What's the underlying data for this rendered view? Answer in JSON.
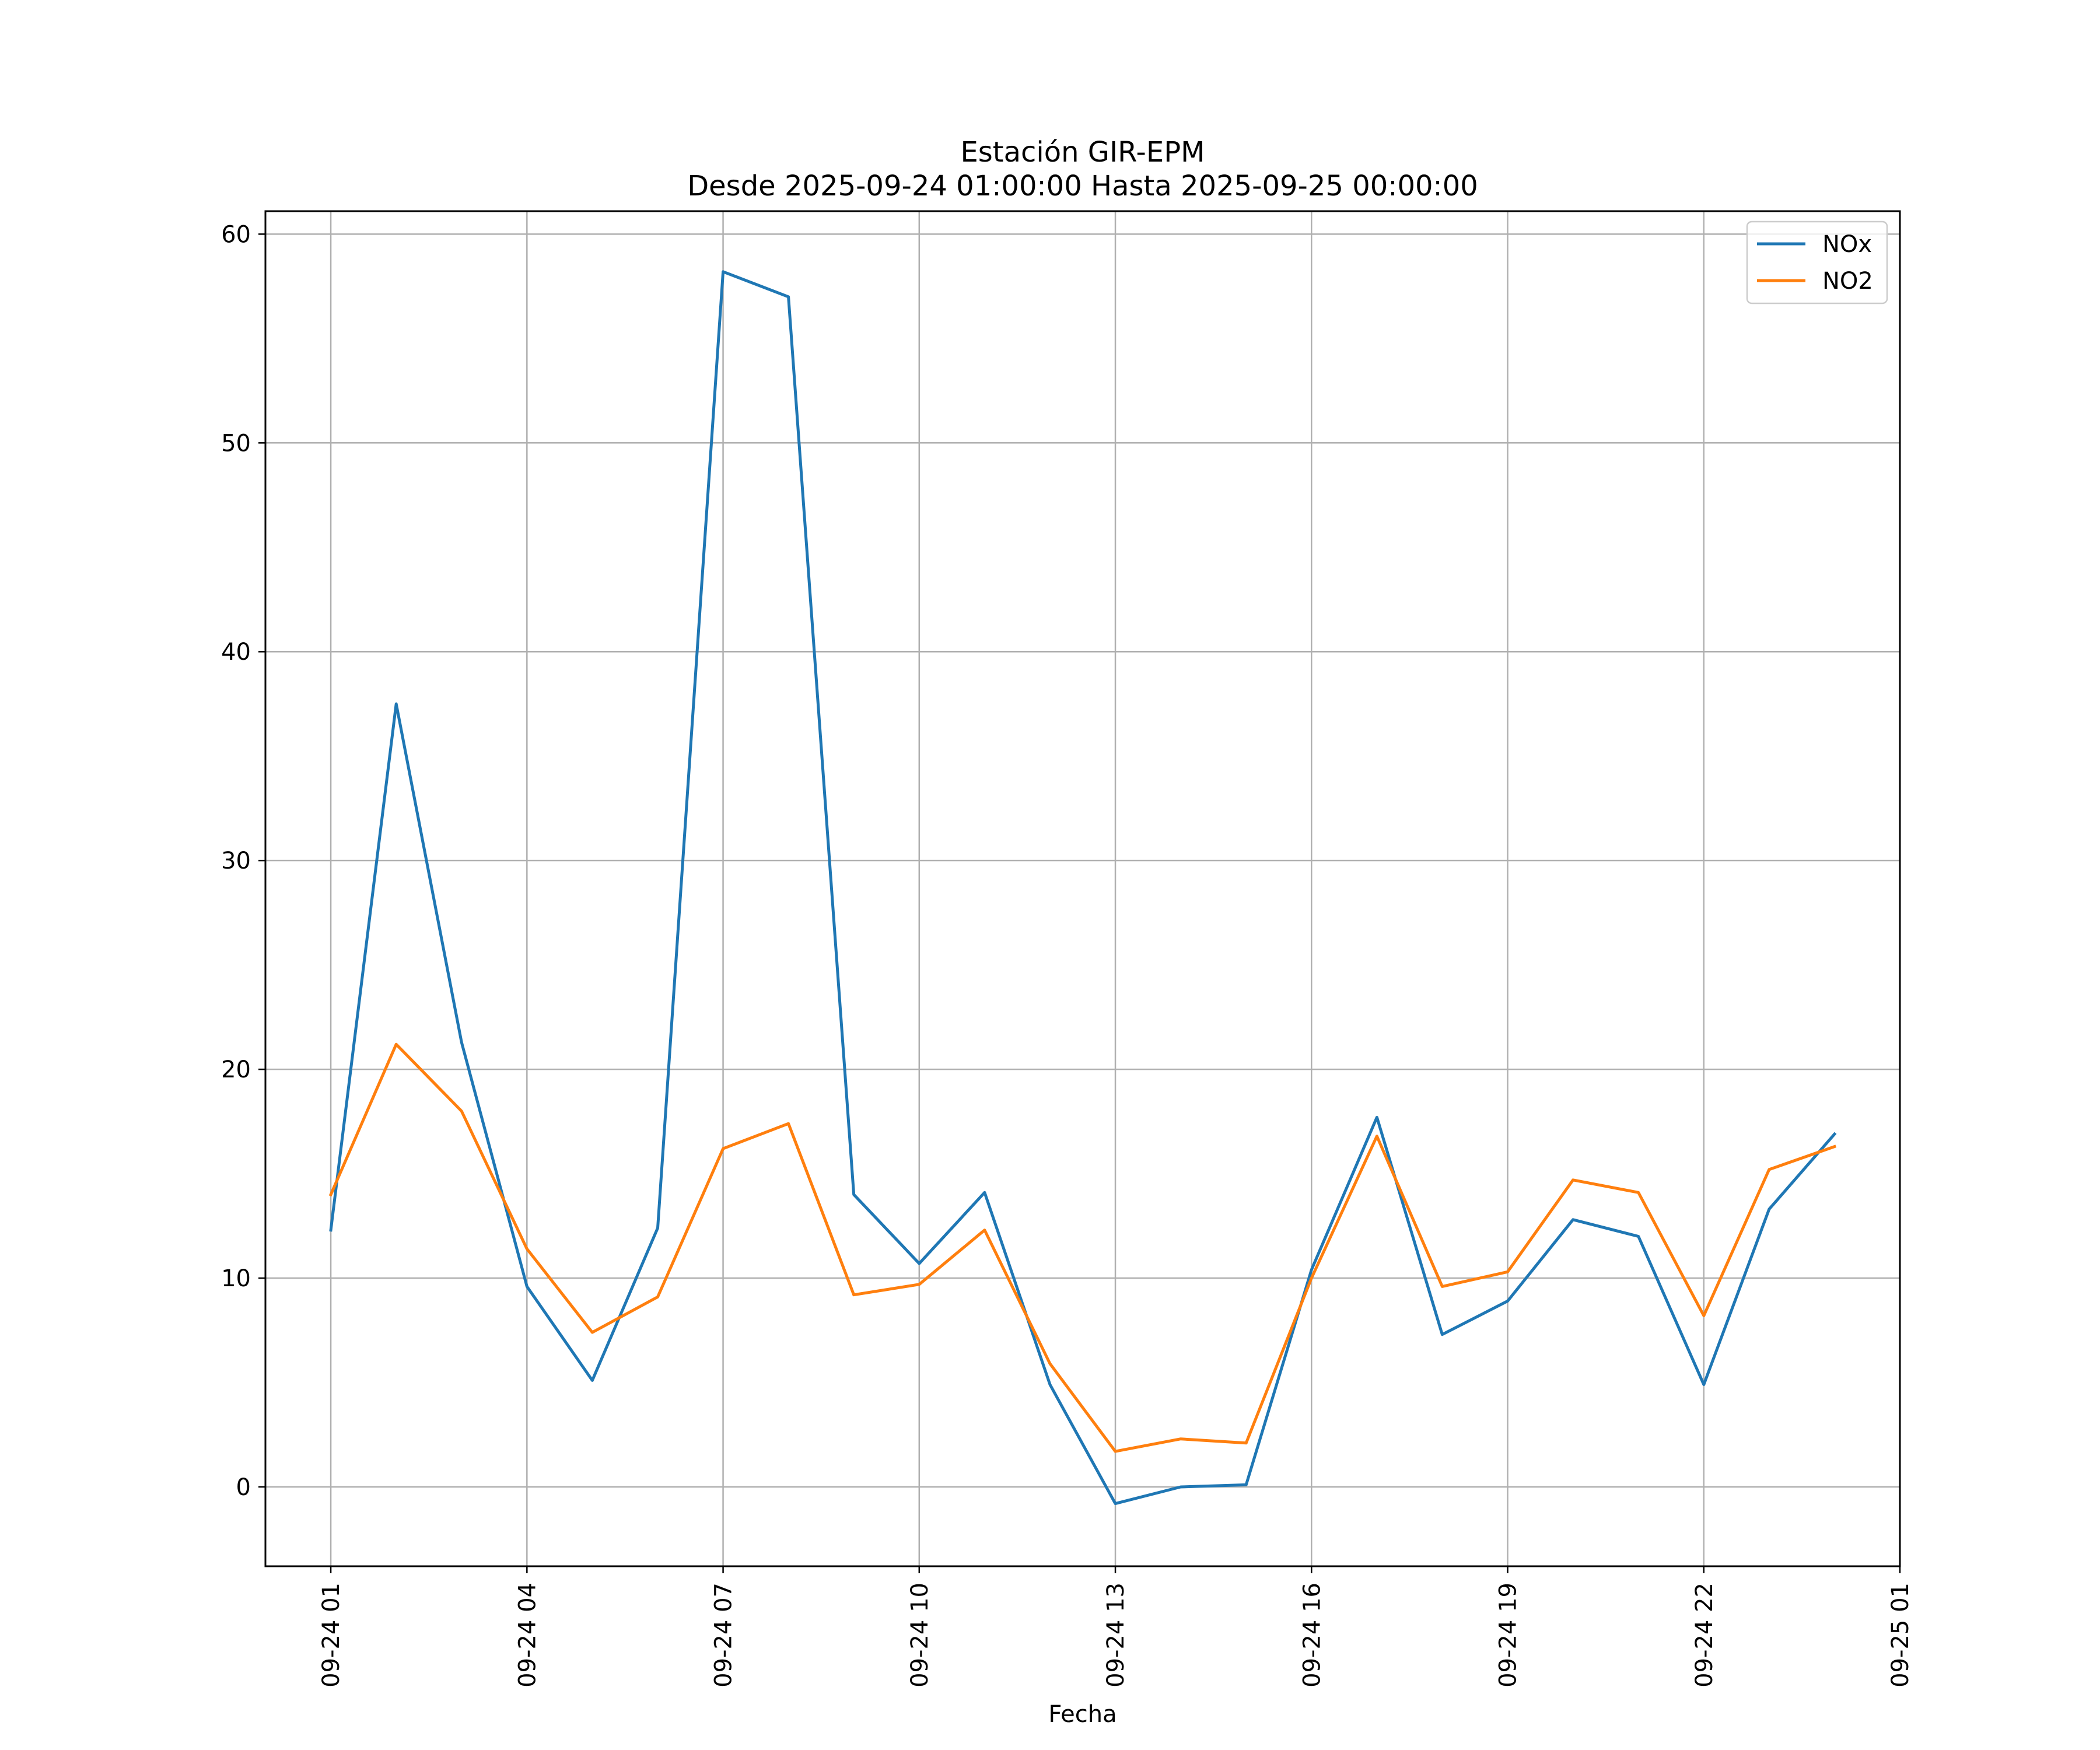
{
  "chart_data": {
    "type": "line",
    "title": "Estación GIR-EPM",
    "subtitle": "Desde 2025-09-24 01:00:00 Hasta 2025-09-25 00:00:00",
    "xlabel": "Fecha",
    "ylabel": "",
    "x": [
      "2025-09-24 01:00",
      "2025-09-24 02:00",
      "2025-09-24 03:00",
      "2025-09-24 04:00",
      "2025-09-24 05:00",
      "2025-09-24 06:00",
      "2025-09-24 07:00",
      "2025-09-24 08:00",
      "2025-09-24 09:00",
      "2025-09-24 10:00",
      "2025-09-24 11:00",
      "2025-09-24 12:00",
      "2025-09-24 13:00",
      "2025-09-24 14:00",
      "2025-09-24 15:00",
      "2025-09-24 16:00",
      "2025-09-24 17:00",
      "2025-09-24 18:00",
      "2025-09-24 19:00",
      "2025-09-24 20:00",
      "2025-09-24 21:00",
      "2025-09-24 22:00",
      "2025-09-24 23:00",
      "2025-09-25 00:00"
    ],
    "xlim": [
      "2025-09-24 00:00",
      "2025-09-25 01:00"
    ],
    "xticks": [
      {
        "value": "2025-09-24 01:00",
        "label": "09-24 01"
      },
      {
        "value": "2025-09-24 04:00",
        "label": "09-24 04"
      },
      {
        "value": "2025-09-24 07:00",
        "label": "09-24 07"
      },
      {
        "value": "2025-09-24 10:00",
        "label": "09-24 10"
      },
      {
        "value": "2025-09-24 13:00",
        "label": "09-24 13"
      },
      {
        "value": "2025-09-24 16:00",
        "label": "09-24 16"
      },
      {
        "value": "2025-09-24 19:00",
        "label": "09-24 19"
      },
      {
        "value": "2025-09-24 22:00",
        "label": "09-24 22"
      },
      {
        "value": "2025-09-25 01:00",
        "label": "09-25 01"
      }
    ],
    "ylim": [
      -3.8,
      61.1
    ],
    "yticks": [
      0,
      10,
      20,
      30,
      40,
      50,
      60
    ],
    "grid": true,
    "legend": "top-right",
    "series": [
      {
        "name": "NOx",
        "color": "#1f77b4",
        "values": [
          12.3,
          37.5,
          21.3,
          9.6,
          5.1,
          12.4,
          58.2,
          57.0,
          14.0,
          10.7,
          14.1,
          4.9,
          -0.8,
          0.0,
          0.1,
          10.4,
          17.7,
          7.3,
          8.9,
          12.8,
          12.0,
          4.9,
          13.3,
          16.9
        ]
      },
      {
        "name": "NO2",
        "color": "#ff7f0e",
        "values": [
          14.0,
          21.2,
          18.0,
          11.4,
          7.4,
          9.1,
          16.2,
          17.4,
          9.2,
          9.7,
          12.3,
          5.9,
          1.7,
          2.3,
          2.1,
          10.0,
          16.8,
          9.6,
          10.3,
          14.7,
          14.1,
          8.2,
          15.2,
          16.3
        ]
      }
    ]
  }
}
